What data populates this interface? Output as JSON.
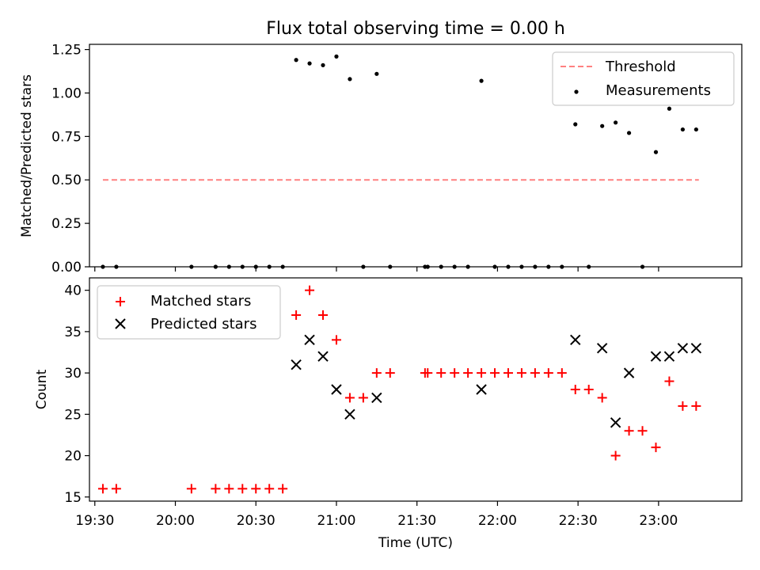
{
  "chart_data": [
    {
      "type": "scatter",
      "title": "Flux total observing time = 0.00 h",
      "xlabel": "",
      "ylabel": "Matched/Predicted stars",
      "ylim": [
        0,
        1.28
      ],
      "xlim": [
        "19:28",
        "23:31"
      ],
      "yticks": [
        0.0,
        0.25,
        0.5,
        0.75,
        1.0,
        1.25
      ],
      "ytick_labels": [
        "0.00",
        "0.25",
        "0.50",
        "0.75",
        "1.00",
        "1.25"
      ],
      "legend": "top-right",
      "threshold": {
        "name": "Threshold",
        "y": 0.5,
        "x_start": "19:33",
        "x_end": "23:15",
        "color": "#ff8080"
      },
      "series": [
        {
          "name": "Measurements",
          "color": "#000000",
          "points": [
            [
              "19:33",
              0
            ],
            [
              "19:38",
              0
            ],
            [
              "20:06",
              0
            ],
            [
              "20:15",
              0
            ],
            [
              "20:20",
              0
            ],
            [
              "20:25",
              0
            ],
            [
              "20:30",
              0
            ],
            [
              "20:35",
              0
            ],
            [
              "20:40",
              0
            ],
            [
              "20:45",
              1.19
            ],
            [
              "20:50",
              1.17
            ],
            [
              "20:55",
              1.16
            ],
            [
              "21:00",
              1.21
            ],
            [
              "21:05",
              1.08
            ],
            [
              "21:10",
              0
            ],
            [
              "21:15",
              1.11
            ],
            [
              "21:20",
              0
            ],
            [
              "21:33",
              0
            ],
            [
              "21:34",
              0
            ],
            [
              "21:39",
              0
            ],
            [
              "21:44",
              0
            ],
            [
              "21:49",
              0
            ],
            [
              "21:54",
              1.07
            ],
            [
              "21:59",
              0
            ],
            [
              "22:04",
              0
            ],
            [
              "22:09",
              0
            ],
            [
              "22:14",
              0
            ],
            [
              "22:19",
              0
            ],
            [
              "22:24",
              0
            ],
            [
              "22:29",
              0.82
            ],
            [
              "22:34",
              0
            ],
            [
              "22:39",
              0.81
            ],
            [
              "22:44",
              0.83
            ],
            [
              "22:49",
              0.77
            ],
            [
              "22:54",
              0
            ],
            [
              "22:59",
              0.66
            ],
            [
              "23:04",
              0.91
            ],
            [
              "23:09",
              0.79
            ],
            [
              "23:14",
              0.79
            ]
          ]
        }
      ]
    },
    {
      "type": "scatter",
      "title": "",
      "xlabel": "Time (UTC)",
      "ylabel": "Count",
      "ylim": [
        14.5,
        41.5
      ],
      "yticks": [
        15,
        20,
        25,
        30,
        35,
        40
      ],
      "xticks": [
        "19:30",
        "20:00",
        "20:30",
        "21:00",
        "21:30",
        "22:00",
        "22:30",
        "23:00"
      ],
      "legend": "top-left",
      "series": [
        {
          "name": "Matched stars",
          "color": "#ff0000",
          "marker": "plus",
          "points": [
            [
              "19:33",
              16
            ],
            [
              "19:38",
              16
            ],
            [
              "20:06",
              16
            ],
            [
              "20:15",
              16
            ],
            [
              "20:20",
              16
            ],
            [
              "20:25",
              16
            ],
            [
              "20:30",
              16
            ],
            [
              "20:35",
              16
            ],
            [
              "20:40",
              16
            ],
            [
              "20:45",
              37
            ],
            [
              "20:50",
              40
            ],
            [
              "20:55",
              37
            ],
            [
              "21:00",
              34
            ],
            [
              "21:05",
              27
            ],
            [
              "21:10",
              27
            ],
            [
              "21:15",
              30
            ],
            [
              "21:20",
              30
            ],
            [
              "21:33",
              30
            ],
            [
              "21:34",
              30
            ],
            [
              "21:39",
              30
            ],
            [
              "21:44",
              30
            ],
            [
              "21:49",
              30
            ],
            [
              "21:54",
              30
            ],
            [
              "21:59",
              30
            ],
            [
              "22:04",
              30
            ],
            [
              "22:09",
              30
            ],
            [
              "22:14",
              30
            ],
            [
              "22:19",
              30
            ],
            [
              "22:24",
              30
            ],
            [
              "22:29",
              28
            ],
            [
              "22:34",
              28
            ],
            [
              "22:39",
              27
            ],
            [
              "22:44",
              20
            ],
            [
              "22:49",
              23
            ],
            [
              "22:54",
              23
            ],
            [
              "22:59",
              21
            ],
            [
              "23:04",
              29
            ],
            [
              "23:09",
              26
            ],
            [
              "23:14",
              26
            ]
          ]
        },
        {
          "name": "Predicted stars",
          "color": "#000000",
          "marker": "x",
          "points": [
            [
              "20:45",
              31
            ],
            [
              "20:50",
              34
            ],
            [
              "20:55",
              32
            ],
            [
              "21:00",
              28
            ],
            [
              "21:05",
              25
            ],
            [
              "21:15",
              27
            ],
            [
              "21:54",
              28
            ],
            [
              "22:29",
              34
            ],
            [
              "22:39",
              33
            ],
            [
              "22:44",
              24
            ],
            [
              "22:49",
              30
            ],
            [
              "22:59",
              32
            ],
            [
              "23:04",
              32
            ],
            [
              "23:09",
              33
            ],
            [
              "23:14",
              33
            ]
          ]
        }
      ]
    }
  ]
}
